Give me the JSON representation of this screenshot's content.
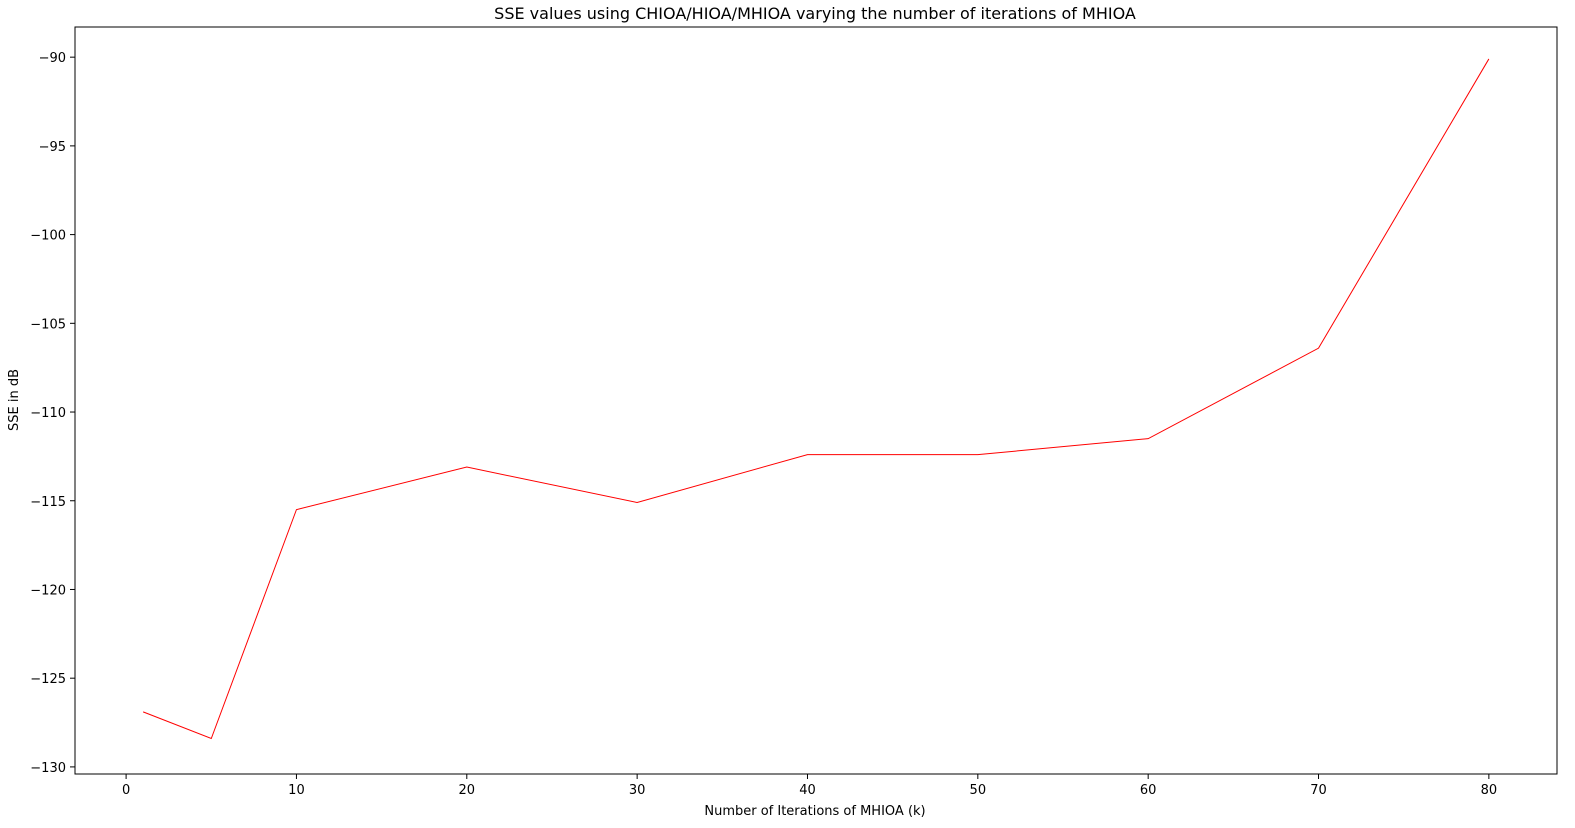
{
  "chart_data": {
    "type": "line",
    "title": "SSE values using CHIOA/HIOA/MHIOA varying the number of iterations of MHIOA",
    "xlabel": "Number of Iterations of MHIOA (k)",
    "ylabel": "SSE in dB",
    "xlim": [
      -3,
      84
    ],
    "ylim": [
      -130.4,
      -88.3
    ],
    "xticks": [
      0,
      10,
      20,
      30,
      40,
      50,
      60,
      70,
      80
    ],
    "yticks": [
      -130,
      -125,
      -120,
      -115,
      -110,
      -105,
      -100,
      -95,
      -90
    ],
    "xtick_labels": [
      "0",
      "10",
      "20",
      "30",
      "40",
      "50",
      "60",
      "70",
      "80"
    ],
    "ytick_labels": [
      "−130",
      "−125",
      "−120",
      "−115",
      "−110",
      "−105",
      "−100",
      "−95",
      "−90"
    ],
    "grid": false,
    "series": [
      {
        "color": "#ff0000",
        "x": [
          1,
          5,
          10,
          20,
          30,
          40,
          50,
          60,
          70,
          80
        ],
        "y": [
          -126.9,
          -128.4,
          -115.5,
          -113.1,
          -115.1,
          -112.4,
          -112.4,
          -111.5,
          -106.4,
          -90.1
        ]
      }
    ]
  }
}
